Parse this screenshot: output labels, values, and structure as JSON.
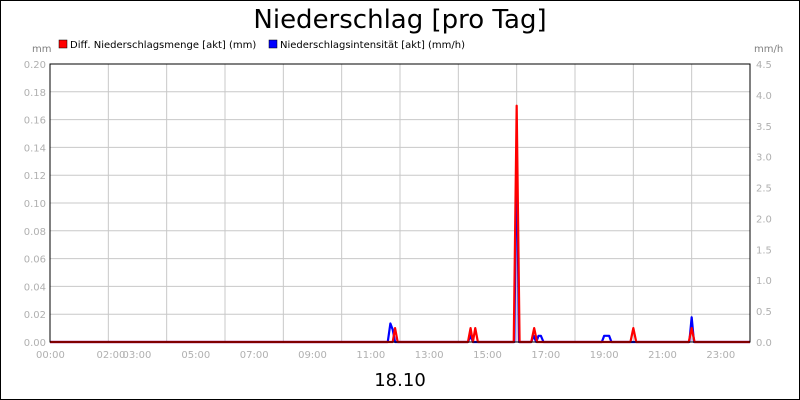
{
  "chart_data": {
    "type": "line",
    "title": "Niederschlag [pro Tag]",
    "date_label": "18.10",
    "y_left_unit": "mm",
    "y_right_unit": "mm/h",
    "y_left_lim": [
      0,
      0.2
    ],
    "y_right_lim": [
      0,
      4.5
    ],
    "y_left_ticks": [
      "0.00",
      "0.02",
      "0.04",
      "0.06",
      "0.08",
      "0.10",
      "0.12",
      "0.14",
      "0.16",
      "0.18",
      "0.20"
    ],
    "y_right_ticks": [
      "0.0",
      "0.5",
      "1.0",
      "1.5",
      "2.0",
      "2.5",
      "3.0",
      "3.5",
      "4.0",
      "4.5"
    ],
    "x_range_hours": [
      0,
      24
    ],
    "x_ticks": [
      {
        "hour": 0,
        "label": "00:00"
      },
      {
        "hour": 2,
        "label": "02:00"
      },
      {
        "hour": 3,
        "label": "03:00"
      },
      {
        "hour": 5,
        "label": "05:00"
      },
      {
        "hour": 7,
        "label": "07:00"
      },
      {
        "hour": 9,
        "label": "09:00"
      },
      {
        "hour": 11,
        "label": "11:00"
      },
      {
        "hour": 13,
        "label": "13:00"
      },
      {
        "hour": 15,
        "label": "15:00"
      },
      {
        "hour": 17,
        "label": "17:00"
      },
      {
        "hour": 19,
        "label": "19:00"
      },
      {
        "hour": 21,
        "label": "21:00"
      },
      {
        "hour": 23,
        "label": "23:00"
      }
    ],
    "grid": true,
    "legend_position": "top-left",
    "series": [
      {
        "name": "Diff. Niederschlagsmenge [akt] (mm)",
        "axis": "left",
        "color": "#ff0000",
        "x": [
          0,
          11.75,
          11.83,
          11.92,
          14.33,
          14.42,
          14.5,
          14.58,
          14.67,
          15.9,
          16.0,
          16.1,
          16.5,
          16.6,
          16.7,
          19.9,
          20.0,
          20.1,
          21.9,
          22.0,
          22.1,
          24
        ],
        "y": [
          0,
          0,
          0.01,
          0,
          0,
          0.01,
          0,
          0.01,
          0,
          0,
          0.17,
          0,
          0,
          0.01,
          0,
          0,
          0.01,
          0,
          0,
          0.01,
          0,
          0
        ]
      },
      {
        "name": "Niederschlagsintensität [akt] (mm/h)",
        "axis": "right",
        "color": "#0000ff",
        "x": [
          0,
          11.58,
          11.67,
          11.75,
          11.83,
          14.33,
          14.42,
          14.5,
          15.92,
          16.0,
          16.08,
          16.5,
          16.58,
          16.67,
          16.75,
          16.83,
          16.92,
          18.92,
          19.0,
          19.08,
          19.17,
          19.25,
          21.92,
          22.0,
          22.08,
          24
        ],
        "y": [
          0,
          0,
          0.3,
          0.2,
          0,
          0,
          0.1,
          0,
          0,
          3.3,
          0,
          0,
          0.1,
          0,
          0.1,
          0.1,
          0,
          0,
          0.1,
          0.1,
          0.1,
          0,
          0,
          0.4,
          0,
          0
        ]
      }
    ]
  }
}
